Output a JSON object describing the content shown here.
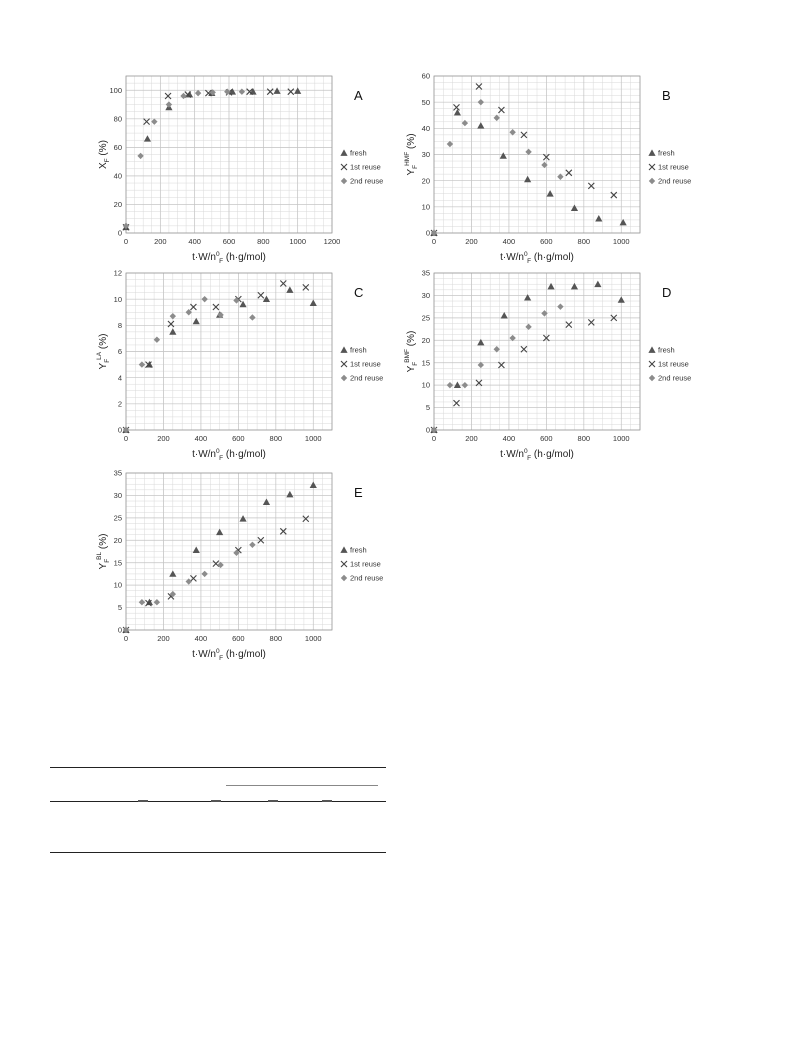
{
  "colors": {
    "fresh": "#555555",
    "reuse1": "#444444",
    "reuse2": "#8c8c8c",
    "grid": "#d9d9d9",
    "axis": "#9a9a9a"
  },
  "chart_data": [
    {
      "id": "A",
      "type": "scatter",
      "panel_label": "A",
      "ylabel_main": "X",
      "ylabel_sub": "F",
      "ylabel_sup": "",
      "ylabel_unit": " (%)",
      "xlabel_pre": "t·W/n",
      "xlabel_sup": "0",
      "xlabel_sub": "F",
      "xlabel_post": " (h·g/mol)",
      "xlim": [
        0,
        1200
      ],
      "ylim": [
        0,
        110
      ],
      "xticks": [
        0,
        200,
        400,
        600,
        800,
        1000,
        1200
      ],
      "yticks": [
        0,
        20,
        40,
        60,
        80,
        100
      ],
      "legend_position": "right",
      "series": [
        {
          "name": "fresh",
          "marker": "triangle",
          "x": [
            0,
            125,
            250,
            370,
            500,
            620,
            740,
            880,
            1000
          ],
          "y": [
            4,
            66,
            88,
            97,
            98,
            99,
            99,
            99.5,
            99.5
          ]
        },
        {
          "name": "1st reuse",
          "marker": "x",
          "x": [
            0,
            120,
            245,
            360,
            480,
            600,
            720,
            840,
            960
          ],
          "y": [
            4,
            78,
            96,
            97,
            98,
            98.5,
            99,
            99,
            99
          ]
        },
        {
          "name": "2nd reuse",
          "marker": "diamond",
          "x": [
            0,
            85,
            165,
            250,
            335,
            420,
            505,
            590,
            675
          ],
          "y": [
            5,
            54,
            78,
            90,
            96,
            98,
            98.5,
            99,
            99
          ]
        }
      ]
    },
    {
      "id": "B",
      "type": "scatter",
      "panel_label": "B",
      "ylabel_main": "Y",
      "ylabel_sub": "F",
      "ylabel_sup": "HMF",
      "ylabel_unit": " (%)",
      "xlabel_pre": "t·W/n",
      "xlabel_sup": "0",
      "xlabel_sub": "F",
      "xlabel_post": " (h·g/mol)",
      "xlim": [
        0,
        1100
      ],
      "ylim": [
        0,
        60
      ],
      "xticks": [
        0,
        200,
        400,
        600,
        800,
        1000
      ],
      "yticks": [
        0,
        10,
        20,
        30,
        40,
        50,
        60
      ],
      "legend_position": "right",
      "series": [
        {
          "name": "fresh",
          "marker": "triangle",
          "x": [
            0,
            125,
            250,
            370,
            500,
            620,
            750,
            880,
            1010
          ],
          "y": [
            0,
            46,
            41,
            29.5,
            20.5,
            15,
            9.5,
            5.5,
            4
          ]
        },
        {
          "name": "1st reuse",
          "marker": "x",
          "x": [
            0,
            120,
            240,
            360,
            480,
            600,
            720,
            840,
            960
          ],
          "y": [
            0,
            48,
            56,
            47,
            37.5,
            29,
            23,
            18,
            14.5
          ]
        },
        {
          "name": "2nd reuse",
          "marker": "diamond",
          "x": [
            0,
            85,
            165,
            250,
            335,
            420,
            505,
            590,
            675
          ],
          "y": [
            0,
            34,
            42,
            50,
            44,
            38.5,
            31,
            26,
            21.5
          ]
        }
      ]
    },
    {
      "id": "C",
      "type": "scatter",
      "panel_label": "C",
      "ylabel_main": "Y",
      "ylabel_sub": "F",
      "ylabel_sup": "LA",
      "ylabel_unit": " (%)",
      "xlabel_pre": "t·W/n",
      "xlabel_sup": "0",
      "xlabel_sub": "F",
      "xlabel_post": " (h·g/mol)",
      "xlim": [
        0,
        1100
      ],
      "ylim": [
        0,
        12
      ],
      "xticks": [
        0,
        200,
        400,
        600,
        800,
        1000
      ],
      "yticks": [
        0,
        2,
        4,
        6,
        8,
        10,
        12
      ],
      "legend_position": "right",
      "series": [
        {
          "name": "fresh",
          "marker": "triangle",
          "x": [
            0,
            125,
            250,
            375,
            500,
            625,
            750,
            875,
            1000
          ],
          "y": [
            0,
            5,
            7.5,
            8.3,
            8.8,
            9.6,
            10,
            10.7,
            9.7
          ]
        },
        {
          "name": "1st reuse",
          "marker": "x",
          "x": [
            0,
            120,
            240,
            360,
            480,
            600,
            720,
            840,
            960
          ],
          "y": [
            0,
            5,
            8.1,
            9.4,
            9.4,
            10,
            10.3,
            11.2,
            10.9
          ]
        },
        {
          "name": "2nd reuse",
          "marker": "diamond",
          "x": [
            0,
            85,
            165,
            250,
            335,
            420,
            505,
            590,
            675
          ],
          "y": [
            0,
            5,
            6.9,
            8.7,
            9,
            10,
            8.8,
            9.9,
            8.6
          ]
        }
      ]
    },
    {
      "id": "D",
      "type": "scatter",
      "panel_label": "D",
      "ylabel_main": "Y",
      "ylabel_sub": "F",
      "ylabel_sup": "BMF",
      "ylabel_unit": " (%)",
      "xlabel_pre": "t·W/n",
      "xlabel_sup": "0",
      "xlabel_sub": "F",
      "xlabel_post": " (h·g/mol)",
      "xlim": [
        0,
        1100
      ],
      "ylim": [
        0,
        35
      ],
      "xticks": [
        0,
        200,
        400,
        600,
        800,
        1000
      ],
      "yticks": [
        0,
        5,
        10,
        15,
        20,
        25,
        30,
        35
      ],
      "legend_position": "right",
      "series": [
        {
          "name": "fresh",
          "marker": "triangle",
          "x": [
            0,
            125,
            250,
            375,
            500,
            625,
            750,
            875,
            1000
          ],
          "y": [
            0,
            10,
            19.5,
            25.5,
            29.5,
            32,
            32,
            32.5,
            29
          ]
        },
        {
          "name": "1st reuse",
          "marker": "x",
          "x": [
            0,
            120,
            240,
            360,
            480,
            600,
            720,
            840,
            960
          ],
          "y": [
            0,
            6,
            10.5,
            14.5,
            18,
            20.5,
            23.5,
            24,
            25
          ]
        },
        {
          "name": "2nd reuse",
          "marker": "diamond",
          "x": [
            0,
            85,
            165,
            250,
            335,
            420,
            505,
            590,
            675
          ],
          "y": [
            0,
            10,
            10,
            14.5,
            18,
            20.5,
            23,
            26,
            27.5
          ]
        }
      ]
    },
    {
      "id": "E",
      "type": "scatter",
      "panel_label": "E",
      "ylabel_main": "Y",
      "ylabel_sub": "F",
      "ylabel_sup": "BL",
      "ylabel_unit": " (%)",
      "xlabel_pre": "t·W/n",
      "xlabel_sup": "0",
      "xlabel_sub": "F",
      "xlabel_post": " (h·g/mol)",
      "xlim": [
        0,
        1100
      ],
      "ylim": [
        0,
        35
      ],
      "xticks": [
        0,
        200,
        400,
        600,
        800,
        1000
      ],
      "yticks": [
        0,
        5,
        10,
        15,
        20,
        25,
        30,
        35
      ],
      "legend_position": "right",
      "series": [
        {
          "name": "fresh",
          "marker": "triangle",
          "x": [
            0,
            125,
            250,
            375,
            500,
            625,
            750,
            875,
            1000
          ],
          "y": [
            0,
            6.2,
            12.5,
            17.8,
            21.8,
            24.8,
            28.5,
            30.2,
            32.3
          ]
        },
        {
          "name": "1st reuse",
          "marker": "x",
          "x": [
            0,
            120,
            240,
            360,
            480,
            600,
            720,
            840,
            960
          ],
          "y": [
            0,
            6,
            7.5,
            11.5,
            14.8,
            17.8,
            20,
            22,
            24.8
          ]
        },
        {
          "name": "2nd reuse",
          "marker": "diamond",
          "x": [
            0,
            85,
            165,
            250,
            335,
            420,
            505,
            590,
            675
          ],
          "y": [
            0,
            6.2,
            6.2,
            8,
            10.8,
            12.5,
            14.5,
            17.2,
            19
          ]
        }
      ]
    }
  ]
}
